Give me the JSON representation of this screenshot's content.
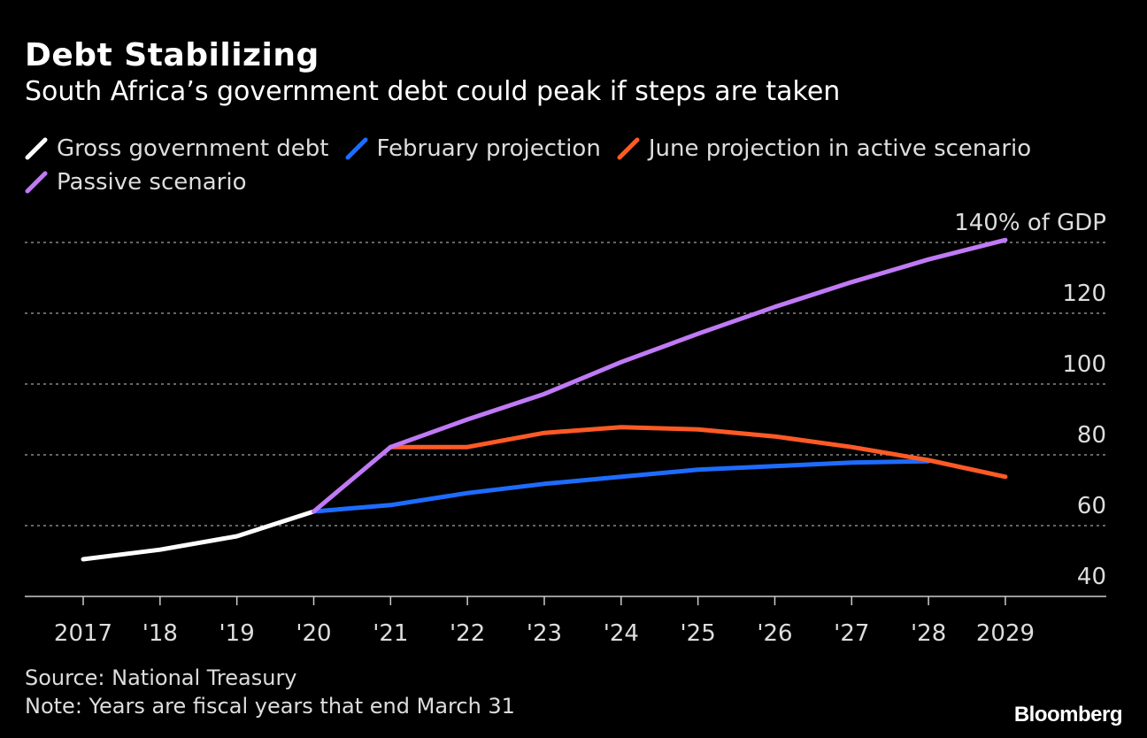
{
  "header": {
    "title": "Debt Stabilizing",
    "subtitle": "South Africa’s government debt could peak if steps are taken"
  },
  "footer": {
    "source": "Source: National Treasury",
    "note": "Note: Years are fiscal years that end March 31",
    "logo": "Bloomberg"
  },
  "chart_data": {
    "type": "line",
    "title": "Debt Stabilizing",
    "ylabel": "% of GDP",
    "ylim": [
      40,
      140
    ],
    "yticks": [
      40,
      60,
      80,
      100,
      120,
      140
    ],
    "ytick_labels": [
      "40",
      "60",
      "80",
      "100",
      "120",
      "140% of GDP"
    ],
    "x": [
      2017,
      2018,
      2019,
      2020,
      2021,
      2022,
      2023,
      2024,
      2025,
      2026,
      2027,
      2028,
      2029
    ],
    "xtick_labels": [
      "2017",
      "'18",
      "'19",
      "'20",
      "'21",
      "'22",
      "'23",
      "'24",
      "'25",
      "'26",
      "'27",
      "'28",
      "2029"
    ],
    "grid": true,
    "legend_position": "top-left",
    "series": [
      {
        "name": "Gross government debt",
        "color": "#ffffff",
        "x": [
          2017,
          2018,
          2019,
          2020
        ],
        "values": [
          50.5,
          53.2,
          57,
          64
        ]
      },
      {
        "name": "February projection",
        "color": "#1e6cff",
        "x": [
          2020,
          2021,
          2022,
          2023,
          2024,
          2025,
          2026,
          2027,
          2028
        ],
        "values": [
          64,
          65.8,
          69.2,
          71.8,
          73.8,
          75.8,
          76.8,
          77.8,
          78.2
        ]
      },
      {
        "name": "June projection in active scenario",
        "color": "#ff5a26",
        "x": [
          2021,
          2022,
          2023,
          2024,
          2025,
          2026,
          2027,
          2028,
          2029
        ],
        "values": [
          82.2,
          82.2,
          86.2,
          87.8,
          87.2,
          85.2,
          82.2,
          78.5,
          73.8
        ]
      },
      {
        "name": "Passive scenario",
        "color": "#c07af5",
        "x": [
          2020,
          2021,
          2022,
          2023,
          2024,
          2025,
          2026,
          2027,
          2028,
          2029
        ],
        "values": [
          64,
          82.2,
          90,
          97.2,
          106.2,
          114.2,
          121.8,
          128.8,
          135.2,
          140.7
        ]
      }
    ]
  }
}
